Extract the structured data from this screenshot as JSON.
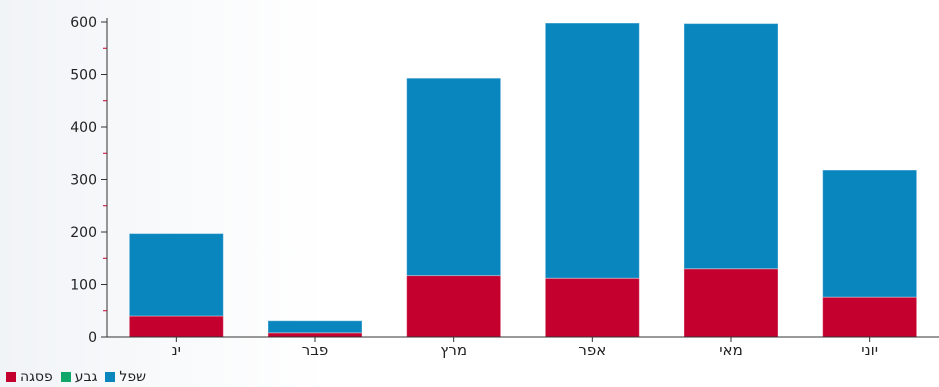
{
  "chart_data": {
    "type": "bar",
    "stacked": true,
    "title": "",
    "xlabel": "",
    "ylabel": "",
    "ylim": [
      0,
      600
    ],
    "yticks": [
      0,
      100,
      200,
      300,
      400,
      500,
      600
    ],
    "ytick_labels": [
      "0",
      "100",
      "200",
      "300",
      "400",
      "500",
      "600"
    ],
    "categories": [
      "ינ",
      "פבר",
      "מרץ",
      "אפר",
      "מאי",
      "יוני"
    ],
    "series": [
      {
        "name": "פסגה",
        "color": "#c4002f",
        "values": [
          40,
          8,
          117,
          112,
          130,
          76
        ]
      },
      {
        "name": "גבע",
        "color": "#11a66a",
        "values": [
          0,
          0,
          0,
          0,
          0,
          0
        ]
      },
      {
        "name": "שפל",
        "color": "#0a86bf",
        "values": [
          157,
          23,
          376,
          486,
          467,
          242
        ]
      }
    ],
    "legend": {
      "position": "bottom-left",
      "order": [
        "פסגה",
        "גבע",
        "שפל"
      ]
    },
    "grid": false
  }
}
